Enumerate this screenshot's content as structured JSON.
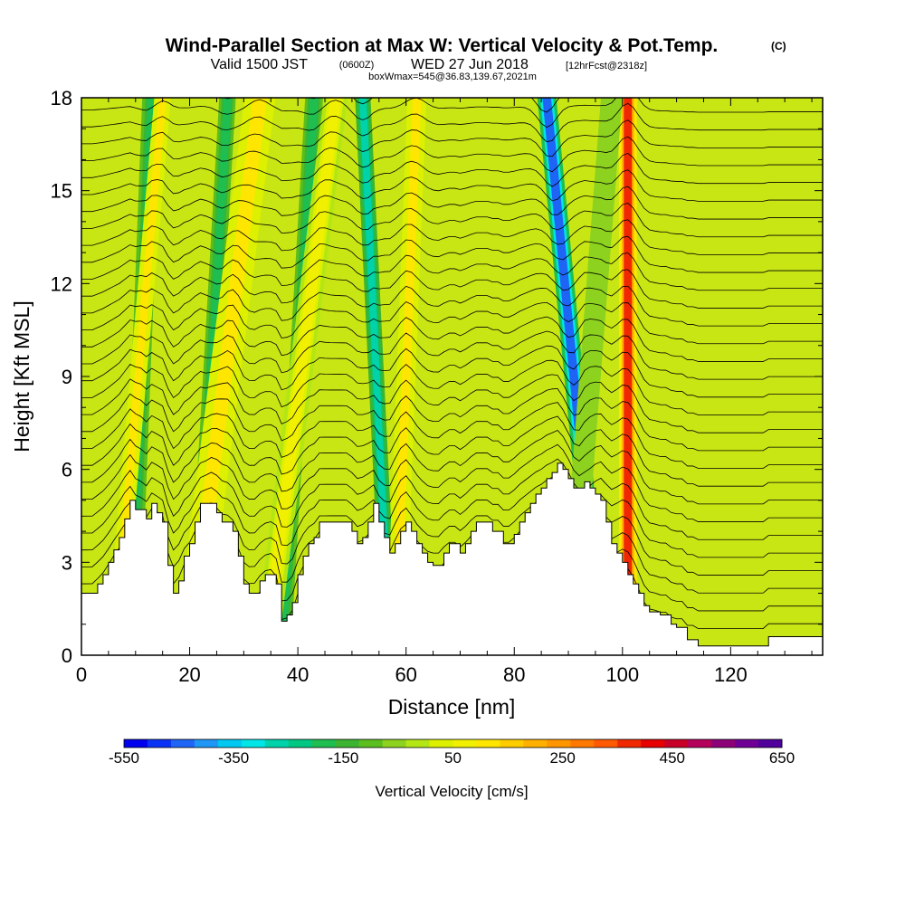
{
  "title": {
    "main": "Wind-Parallel Section at Max W: Vertical Velocity & Pot.Temp.",
    "main_suffix": "(C)",
    "line2_a": "Valid 1500 JST",
    "line2_b": "(0600Z)",
    "line2_c": "WED 27 Jun 2018",
    "line2_d": "[12hrFcst@2318z]",
    "line3": "boxWmax=545@36.83,139.67,2021m"
  },
  "chart_data": {
    "type": "heatmap",
    "xlabel": "Distance [nm]",
    "ylabel": "Height [Kft MSL]",
    "xlim": [
      0,
      137
    ],
    "ylim": [
      0,
      18
    ],
    "x_ticks": [
      0,
      20,
      40,
      60,
      80,
      100,
      120
    ],
    "x_tick_labels": [
      "0",
      "20",
      "40",
      "60",
      "80",
      "100",
      "120"
    ],
    "y_ticks": [
      0,
      3,
      6,
      9,
      12,
      15,
      18
    ],
    "y_tick_labels": [
      "0",
      "3",
      "6",
      "9",
      "12",
      "15",
      "18"
    ],
    "colorbar": {
      "label": "Vertical Velocity [cm/s]",
      "min": -550,
      "max": 650,
      "step": 50,
      "tick_values": [
        -550,
        -350,
        -150,
        50,
        250,
        450,
        650
      ],
      "tick_labels": [
        "-550",
        "-350",
        "-150",
        "50",
        "250",
        "450",
        "650"
      ],
      "colors": [
        "#0000ee",
        "#0a32f5",
        "#1e64f5",
        "#1e96f5",
        "#00c8f0",
        "#00e6e6",
        "#00d2aa",
        "#00c882",
        "#1ebe50",
        "#3cb432",
        "#5abe1e",
        "#8cd21e",
        "#b4e614",
        "#dcf000",
        "#f0f000",
        "#ffe600",
        "#ffcc00",
        "#ffb000",
        "#ff9600",
        "#ff7800",
        "#ff5a00",
        "#f02800",
        "#e60000",
        "#c80028",
        "#b4005a",
        "#8c0078",
        "#6e0096",
        "#50009b"
      ]
    },
    "terrain_profile": [
      [
        0,
        2.0
      ],
      [
        2,
        2.0
      ],
      [
        3,
        2.3
      ],
      [
        4,
        2.6
      ],
      [
        5,
        3.0
      ],
      [
        6,
        3.4
      ],
      [
        7,
        3.8
      ],
      [
        8,
        4.4
      ],
      [
        9,
        5.0
      ],
      [
        10,
        4.7
      ],
      [
        11,
        4.7
      ],
      [
        12,
        4.4
      ],
      [
        13,
        4.9
      ],
      [
        14,
        4.6
      ],
      [
        15,
        4.3
      ],
      [
        16,
        2.9
      ],
      [
        17,
        2.0
      ],
      [
        18,
        2.4
      ],
      [
        19,
        3.2
      ],
      [
        20,
        3.6
      ],
      [
        21,
        4.3
      ],
      [
        22,
        4.9
      ],
      [
        23,
        4.9
      ],
      [
        24,
        4.9
      ],
      [
        25,
        4.6
      ],
      [
        26,
        4.3
      ],
      [
        27,
        4.3
      ],
      [
        28,
        4.0
      ],
      [
        29,
        3.2
      ],
      [
        30,
        2.3
      ],
      [
        31,
        2.0
      ],
      [
        32,
        2.0
      ],
      [
        33,
        2.4
      ],
      [
        34,
        2.6
      ],
      [
        35,
        2.6
      ],
      [
        36,
        2.3
      ],
      [
        37,
        1.1
      ],
      [
        38,
        1.3
      ],
      [
        39,
        1.7
      ],
      [
        40,
        2.6
      ],
      [
        41,
        3.2
      ],
      [
        42,
        3.6
      ],
      [
        43,
        3.8
      ],
      [
        44,
        4.3
      ],
      [
        45,
        4.3
      ],
      [
        46,
        4.3
      ],
      [
        47,
        4.3
      ],
      [
        48,
        4.3
      ],
      [
        49,
        4.3
      ],
      [
        50,
        4.0
      ],
      [
        51,
        3.6
      ],
      [
        52,
        3.8
      ],
      [
        53,
        4.3
      ],
      [
        54,
        4.9
      ],
      [
        55,
        4.3
      ],
      [
        56,
        3.8
      ],
      [
        57,
        3.3
      ],
      [
        58,
        3.6
      ],
      [
        59,
        4.0
      ],
      [
        60,
        4.3
      ],
      [
        61,
        4.0
      ],
      [
        62,
        3.6
      ],
      [
        63,
        3.3
      ],
      [
        64,
        3.0
      ],
      [
        65,
        2.9
      ],
      [
        66,
        2.9
      ],
      [
        67,
        3.3
      ],
      [
        68,
        3.6
      ],
      [
        69,
        3.6
      ],
      [
        70,
        3.3
      ],
      [
        71,
        3.6
      ],
      [
        72,
        4.0
      ],
      [
        73,
        4.3
      ],
      [
        74,
        4.3
      ],
      [
        75,
        4.3
      ],
      [
        76,
        4.0
      ],
      [
        77,
        4.0
      ],
      [
        78,
        3.6
      ],
      [
        79,
        3.6
      ],
      [
        80,
        3.9
      ],
      [
        81,
        4.3
      ],
      [
        82,
        4.6
      ],
      [
        83,
        4.9
      ],
      [
        84,
        5.2
      ],
      [
        85,
        5.4
      ],
      [
        86,
        5.7
      ],
      [
        87,
        5.9
      ],
      [
        88,
        6.2
      ],
      [
        89,
        6.0
      ],
      [
        90,
        5.7
      ],
      [
        91,
        5.4
      ],
      [
        92,
        5.4
      ],
      [
        93,
        5.6
      ],
      [
        94,
        5.4
      ],
      [
        95,
        5.2
      ],
      [
        96,
        5.0
      ],
      [
        97,
        4.3
      ],
      [
        98,
        3.6
      ],
      [
        99,
        3.3
      ],
      [
        100,
        3.0
      ],
      [
        101,
        2.6
      ],
      [
        102,
        2.3
      ],
      [
        103,
        2.0
      ],
      [
        104,
        1.6
      ],
      [
        105,
        1.4
      ],
      [
        106,
        1.4
      ],
      [
        107,
        1.3
      ],
      [
        108,
        1.3
      ],
      [
        109,
        1.0
      ],
      [
        110,
        0.9
      ],
      [
        111,
        0.9
      ],
      [
        112,
        0.5
      ],
      [
        113,
        0.5
      ],
      [
        114,
        0.3
      ],
      [
        115,
        0.3
      ],
      [
        116,
        0.3
      ],
      [
        117,
        0.3
      ],
      [
        118,
        0.3
      ],
      [
        119,
        0.3
      ],
      [
        120,
        0.3
      ],
      [
        121,
        0.3
      ],
      [
        122,
        0.3
      ],
      [
        123,
        0.3
      ],
      [
        124,
        0.3
      ],
      [
        125,
        0.3
      ],
      [
        126,
        0.3
      ],
      [
        127,
        0.6
      ],
      [
        128,
        0.6
      ],
      [
        129,
        0.6
      ],
      [
        130,
        0.6
      ],
      [
        131,
        0.6
      ],
      [
        132,
        0.6
      ],
      [
        133,
        0.6
      ],
      [
        134,
        0.6
      ],
      [
        135,
        0.6
      ],
      [
        136,
        0.6
      ],
      [
        137,
        0.6
      ]
    ],
    "velocity_bands": [
      {
        "x_base": 9,
        "x_top": 13,
        "w": -150,
        "width": 1.6
      },
      {
        "x_base": 21,
        "x_top": 27,
        "w": -150,
        "width": 1.4
      },
      {
        "x_base": 37,
        "x_top": 43,
        "w": -150,
        "width": 1.5
      },
      {
        "x_base": 57,
        "x_top": 52,
        "w": -250,
        "width": 1.3
      },
      {
        "x_base": 96,
        "x_top": 86,
        "w": -450,
        "width": 1.6
      },
      {
        "x_base": 6,
        "x_top": 15,
        "w": 200,
        "width": 1.4
      },
      {
        "x_base": 20,
        "x_top": 33,
        "w": 200,
        "width": 2.6
      },
      {
        "x_base": 34,
        "x_top": 47,
        "w": 150,
        "width": 2.0
      },
      {
        "x_base": 58,
        "x_top": 62,
        "w": 200,
        "width": 1.6
      },
      {
        "x_base": 101,
        "x_top": 101,
        "w": 500,
        "width": 1.5
      },
      {
        "x_base": 90,
        "x_top": 98,
        "w": 0,
        "width": 1.8
      }
    ]
  }
}
